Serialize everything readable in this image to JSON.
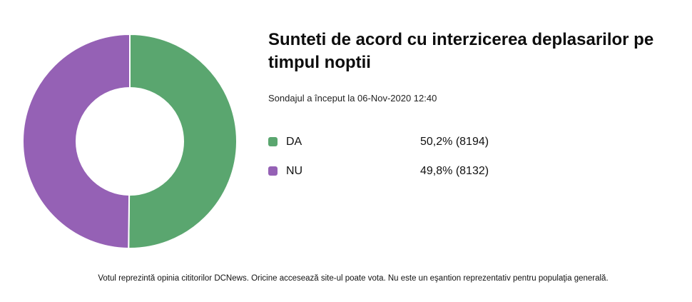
{
  "poll": {
    "title": "Sunteti de acord cu interzicerea deplasarilor pe timpul noptii",
    "start_text": "Sondajul a început la 06-Nov-2020 12:40",
    "footnote": "Votul reprezintă opinia cititorilor DCNews. Oricine accesează site-ul poate vota. Nu este un eşantion reprezentativ pentru populaţia generală."
  },
  "chart_data": {
    "type": "pie",
    "donut": true,
    "title": "Sunteti de acord cu interzicerea deplasarilor pe timpul noptii",
    "categories": [
      "DA",
      "NU"
    ],
    "values": [
      8194,
      8132
    ],
    "percentages": [
      50.2,
      49.8
    ],
    "colors": [
      "#5aa66f",
      "#9561b5"
    ],
    "value_labels": [
      "50,2% (8194)",
      "49,8% (8132)"
    ],
    "legend_position": "right"
  }
}
